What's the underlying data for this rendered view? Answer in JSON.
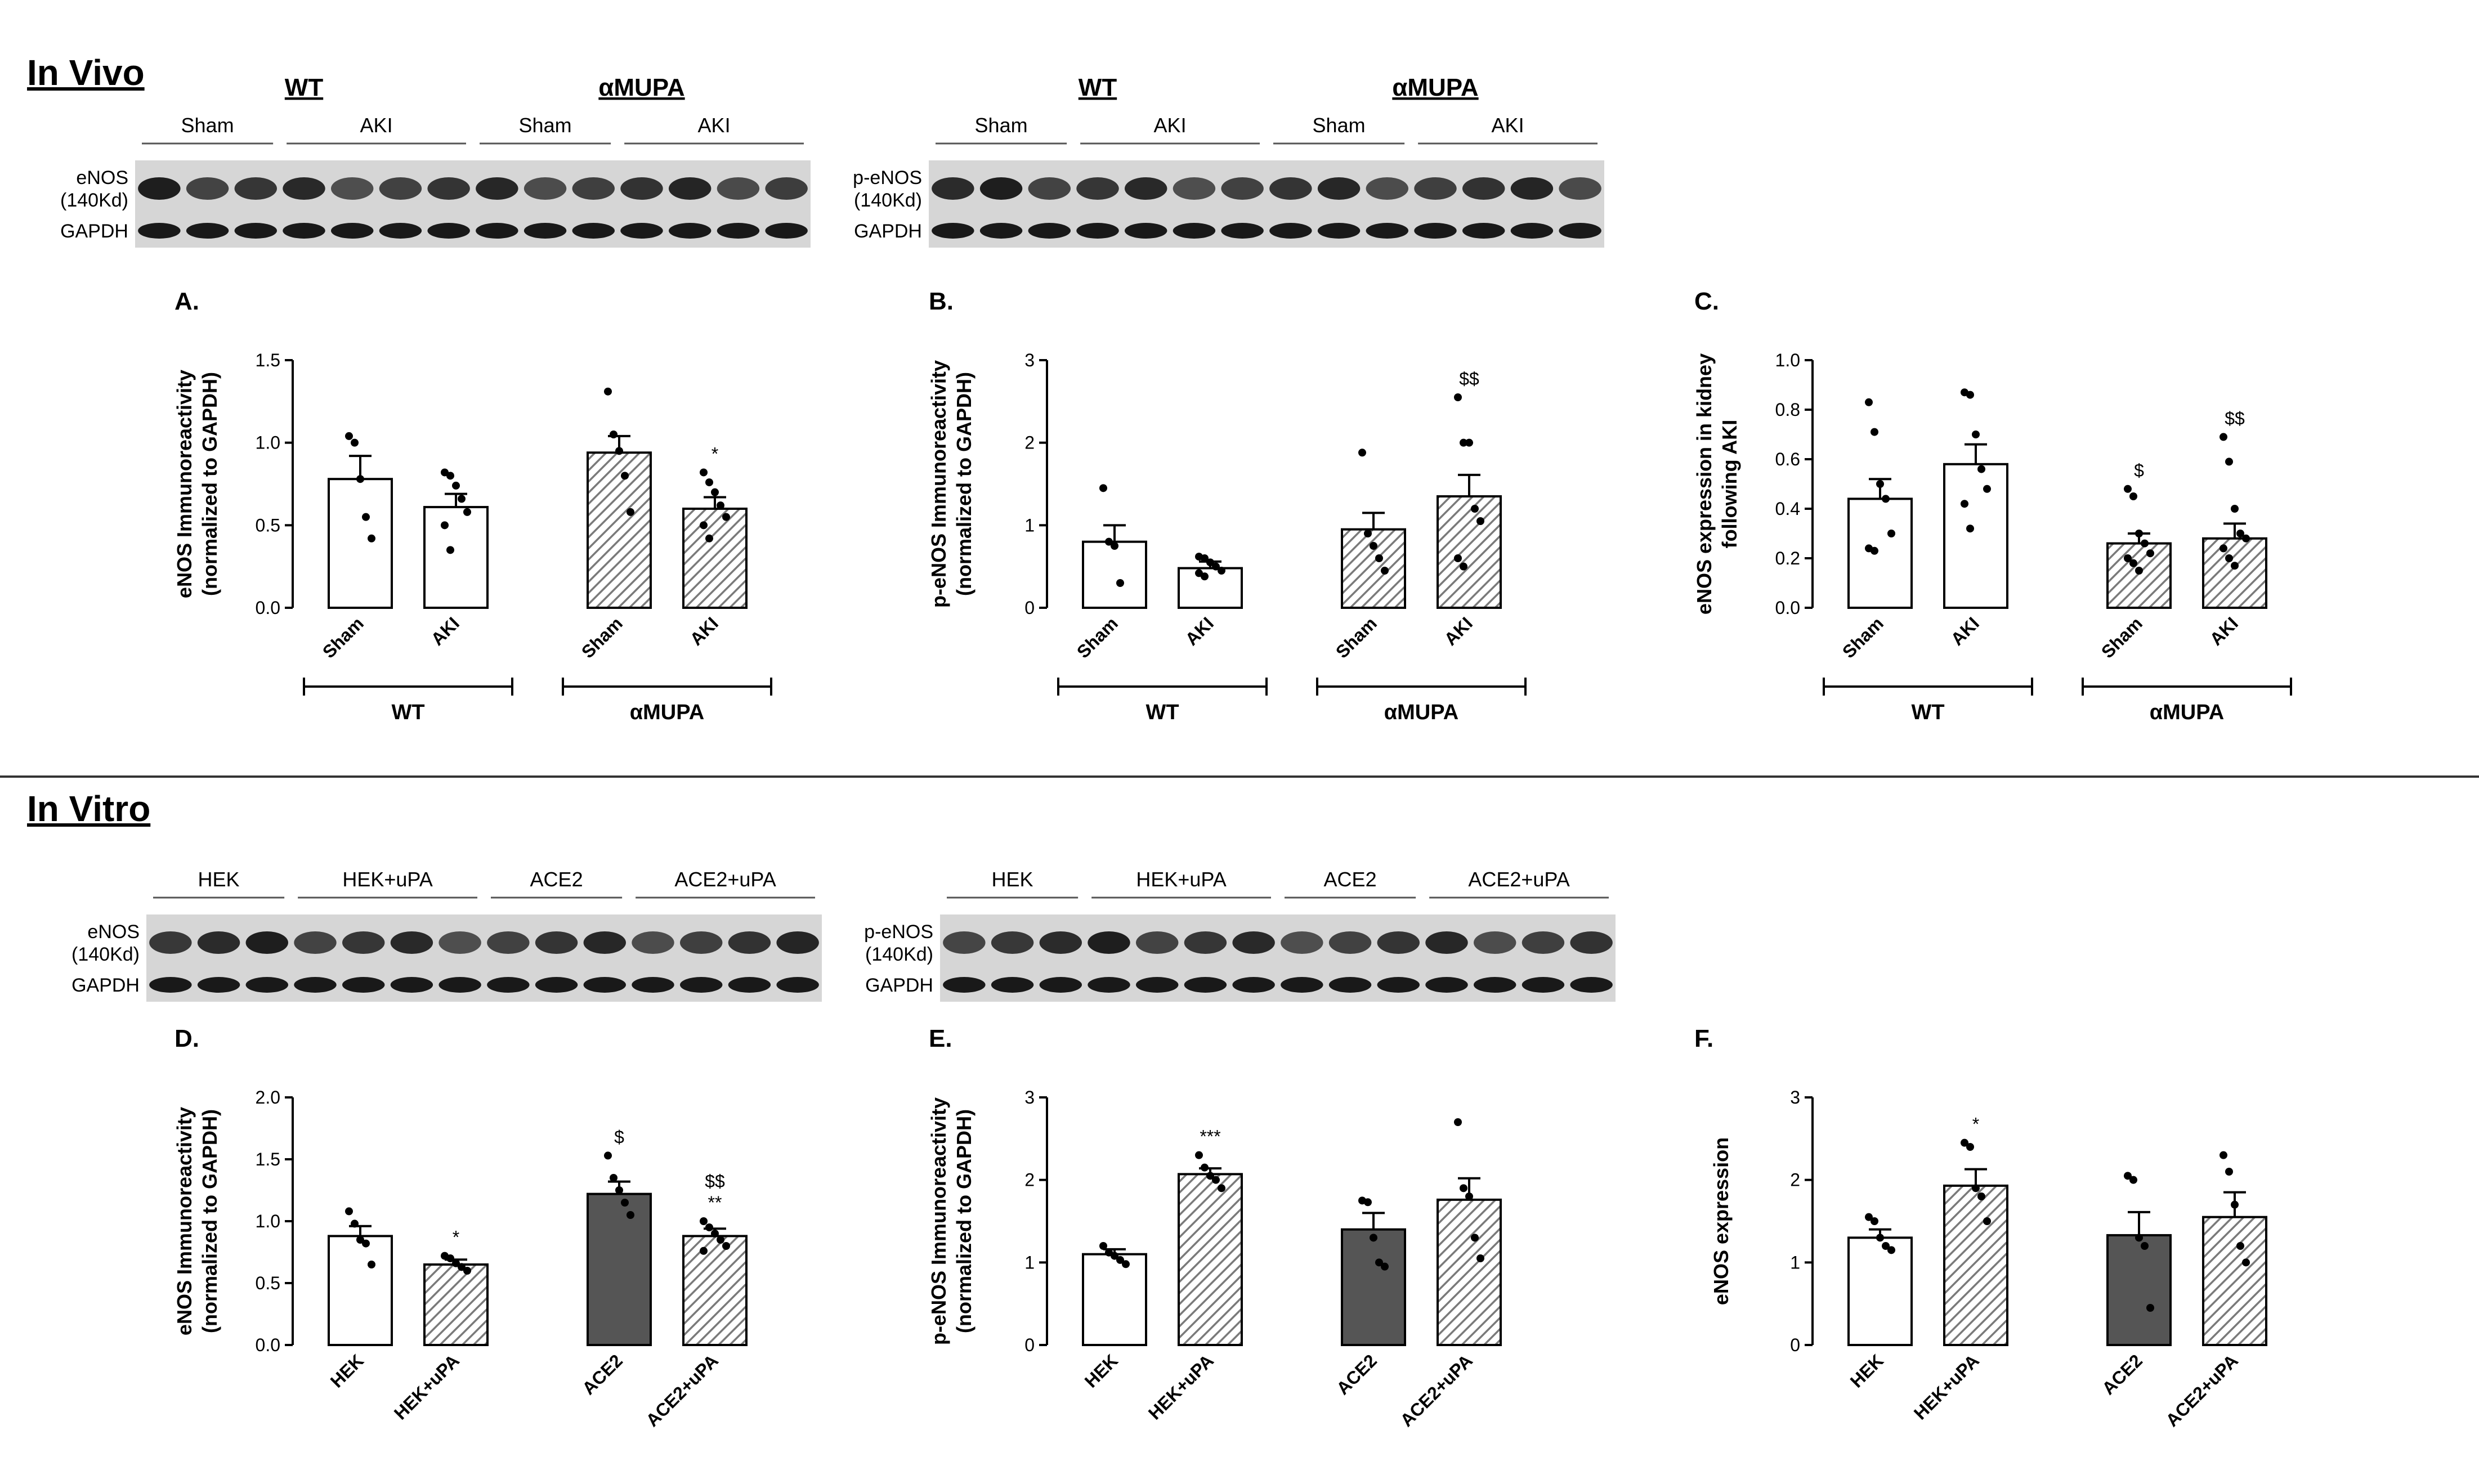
{
  "sections": {
    "in_vivo": "In Vivo",
    "in_vitro": "In Vitro"
  },
  "blots": [
    {
      "groups": [
        {
          "label": "WT",
          "sub": [
            {
              "label": "Sham",
              "lanes": 3
            },
            {
              "label": "AKI",
              "lanes": 4
            }
          ]
        },
        {
          "label": "αMUPA",
          "sub": [
            {
              "label": "Sham",
              "lanes": 3
            },
            {
              "label": "AKI",
              "lanes": 4
            }
          ]
        }
      ],
      "rows": [
        {
          "label1": "eNOS",
          "label2": "(140Kd)"
        },
        {
          "label1": "GAPDH",
          "label2": ""
        }
      ]
    },
    {
      "groups": [
        {
          "label": "WT",
          "sub": [
            {
              "label": "Sham",
              "lanes": 3
            },
            {
              "label": "AKI",
              "lanes": 4
            }
          ]
        },
        {
          "label": "αMUPA",
          "sub": [
            {
              "label": "Sham",
              "lanes": 3
            },
            {
              "label": "AKI",
              "lanes": 4
            }
          ]
        }
      ],
      "rows": [
        {
          "label1": "p-eNOS",
          "label2": "(140Kd)"
        },
        {
          "label1": "GAPDH",
          "label2": ""
        }
      ]
    },
    {
      "groups": [
        {
          "label": "",
          "sub": [
            {
              "label": "HEK",
              "lanes": 3
            },
            {
              "label": "HEK+uPA",
              "lanes": 4
            },
            {
              "label": "ACE2",
              "lanes": 3
            },
            {
              "label": "ACE2+uPA",
              "lanes": 4
            }
          ]
        }
      ],
      "rows": [
        {
          "label1": "eNOS",
          "label2": "(140Kd)"
        },
        {
          "label1": "GAPDH",
          "label2": ""
        }
      ]
    },
    {
      "groups": [
        {
          "label": "",
          "sub": [
            {
              "label": "HEK",
              "lanes": 3
            },
            {
              "label": "HEK+uPA",
              "lanes": 4
            },
            {
              "label": "ACE2",
              "lanes": 3
            },
            {
              "label": "ACE2+uPA",
              "lanes": 4
            }
          ]
        }
      ],
      "rows": [
        {
          "label1": "p-eNOS",
          "label2": "(140Kd)"
        },
        {
          "label1": "GAPDH",
          "label2": ""
        }
      ]
    }
  ],
  "chart_data": [
    {
      "panel": "A.",
      "type": "bar",
      "ylabel": [
        "eNOS Immunoreactivity",
        "(normalized to GAPDH)"
      ],
      "ylim": [
        0,
        1.5
      ],
      "yticks": [
        "0.0",
        "0.5",
        "1.0",
        "1.5"
      ],
      "categories": [
        "Sham",
        "AKI",
        "Sham",
        "AKI"
      ],
      "groups": [
        {
          "label": "WT"
        },
        {
          "label": "αMUPA"
        }
      ],
      "values": [
        0.78,
        0.61,
        0.94,
        0.6
      ],
      "errors": [
        0.14,
        0.08,
        0.1,
        0.07
      ],
      "annotations": [
        "",
        "",
        "",
        "*"
      ],
      "points": [
        [
          1.04,
          1.0,
          0.78,
          0.55,
          0.42
        ],
        [
          0.82,
          0.8,
          0.74,
          0.66,
          0.58,
          0.5,
          0.35
        ],
        [
          1.31,
          1.05,
          0.95,
          0.8,
          0.58
        ],
        [
          0.82,
          0.76,
          0.7,
          0.62,
          0.55,
          0.5,
          0.42
        ]
      ],
      "styles": [
        "white",
        "white",
        "hatch",
        "hatch"
      ]
    },
    {
      "panel": "B.",
      "type": "bar",
      "ylabel": [
        "p-eNOS Immunoreactivity",
        "(normalized to GAPDH)"
      ],
      "ylim": [
        0,
        3
      ],
      "yticks": [
        "0",
        "1",
        "2",
        "3"
      ],
      "categories": [
        "Sham",
        "AKI",
        "Sham",
        "AKI"
      ],
      "groups": [
        {
          "label": "WT"
        },
        {
          "label": "αMUPA"
        }
      ],
      "values": [
        0.8,
        0.48,
        0.95,
        1.35
      ],
      "errors": [
        0.2,
        0.08,
        0.2,
        0.26
      ],
      "annotations": [
        "",
        "",
        "",
        "$$"
      ],
      "points": [
        [
          1.45,
          0.8,
          0.75,
          0.3
        ],
        [
          0.62,
          0.6,
          0.55,
          0.5,
          0.45,
          0.42,
          0.38
        ],
        [
          1.88,
          0.9,
          0.75,
          0.6,
          0.45
        ],
        [
          2.55,
          2.0,
          2.0,
          1.2,
          1.05,
          0.6,
          0.5
        ]
      ],
      "styles": [
        "white",
        "white",
        "hatch",
        "hatch"
      ]
    },
    {
      "panel": "C.",
      "type": "bar",
      "ylabel": [
        "eNOS expression in kidney",
        "following AKI"
      ],
      "ylim": [
        0,
        1
      ],
      "yticks": [
        "0.0",
        "0.2",
        "0.4",
        "0.6",
        "0.8",
        "1.0"
      ],
      "categories": [
        "Sham",
        "AKI",
        "Sham",
        "AKI"
      ],
      "groups": [
        {
          "label": "WT"
        },
        {
          "label": "αMUPA"
        }
      ],
      "values": [
        0.44,
        0.58,
        0.26,
        0.28
      ],
      "errors": [
        0.08,
        0.08,
        0.04,
        0.06
      ],
      "annotations": [
        "",
        "",
        "$",
        "$$"
      ],
      "points": [
        [
          0.83,
          0.71,
          0.5,
          0.44,
          0.3,
          0.24,
          0.23
        ],
        [
          0.87,
          0.86,
          0.7,
          0.56,
          0.48,
          0.42,
          0.32
        ],
        [
          0.48,
          0.45,
          0.3,
          0.26,
          0.22,
          0.2,
          0.18,
          0.15
        ],
        [
          0.69,
          0.59,
          0.4,
          0.3,
          0.28,
          0.24,
          0.2,
          0.17
        ]
      ],
      "styles": [
        "white",
        "white",
        "hatch",
        "hatch"
      ]
    },
    {
      "panel": "D.",
      "type": "bar",
      "ylabel": [
        "eNOS Immunoreactivity",
        "(normalized to GAPDH)"
      ],
      "ylim": [
        0,
        2
      ],
      "yticks": [
        "0.0",
        "0.5",
        "1.0",
        "1.5",
        "2.0"
      ],
      "categories": [
        "HEK",
        "HEK+uPA",
        "ACE2",
        "ACE2+uPA"
      ],
      "groups": [
        {
          "label": ""
        },
        {
          "label": ""
        }
      ],
      "values": [
        0.88,
        0.65,
        1.22,
        0.88
      ],
      "errors": [
        0.08,
        0.04,
        0.1,
        0.06
      ],
      "annotations": [
        "",
        "*",
        "$",
        "$$\n**"
      ],
      "points": [
        [
          1.08,
          0.98,
          0.85,
          0.82,
          0.65
        ],
        [
          0.72,
          0.7,
          0.66,
          0.63,
          0.6
        ],
        [
          1.53,
          1.35,
          1.25,
          1.15,
          1.05
        ],
        [
          1.0,
          0.95,
          0.9,
          0.85,
          0.8,
          0.76
        ]
      ],
      "styles": [
        "white",
        "hatch",
        "dark",
        "hatch"
      ]
    },
    {
      "panel": "E.",
      "type": "bar",
      "ylabel": [
        "p-eNOS Immunoreactivity",
        "(normalized to GAPDH)"
      ],
      "ylim": [
        0,
        3
      ],
      "yticks": [
        "0",
        "1",
        "2",
        "3"
      ],
      "categories": [
        "HEK",
        "HEK+uPA",
        "ACE2",
        "ACE2+uPA"
      ],
      "groups": [
        {
          "label": ""
        },
        {
          "label": ""
        }
      ],
      "values": [
        1.1,
        2.07,
        1.4,
        1.76
      ],
      "errors": [
        0.06,
        0.07,
        0.2,
        0.26
      ],
      "annotations": [
        "",
        "***",
        "",
        ""
      ],
      "points": [
        [
          1.2,
          1.12,
          1.08,
          1.03,
          0.98
        ],
        [
          2.3,
          2.15,
          2.05,
          2.0,
          1.9
        ],
        [
          1.75,
          1.73,
          1.3,
          1.0,
          0.95
        ],
        [
          2.7,
          1.9,
          1.8,
          1.3,
          1.05
        ]
      ],
      "styles": [
        "white",
        "hatch",
        "dark",
        "hatch"
      ]
    },
    {
      "panel": "F.",
      "type": "bar",
      "ylabel": [
        "eNOS expression",
        ""
      ],
      "ylim": [
        0,
        3
      ],
      "yticks": [
        "0",
        "1",
        "2",
        "3"
      ],
      "categories": [
        "HEK",
        "HEK+uPA",
        "ACE2",
        "ACE2+uPA"
      ],
      "groups": [
        {
          "label": ""
        },
        {
          "label": ""
        }
      ],
      "values": [
        1.3,
        1.93,
        1.33,
        1.55
      ],
      "errors": [
        0.1,
        0.2,
        0.28,
        0.3
      ],
      "annotations": [
        "",
        "*",
        "",
        ""
      ],
      "points": [
        [
          1.55,
          1.5,
          1.3,
          1.2,
          1.15
        ],
        [
          2.45,
          2.4,
          1.9,
          1.8,
          1.5
        ],
        [
          2.05,
          2.0,
          1.3,
          1.2,
          0.45
        ],
        [
          2.3,
          2.1,
          1.7,
          1.2,
          1.0
        ]
      ],
      "styles": [
        "white",
        "hatch",
        "dark",
        "hatch"
      ]
    }
  ],
  "colors": {
    "dark_bar": "#555555",
    "hatch": "#7a7a7a",
    "ink": "#000000"
  }
}
